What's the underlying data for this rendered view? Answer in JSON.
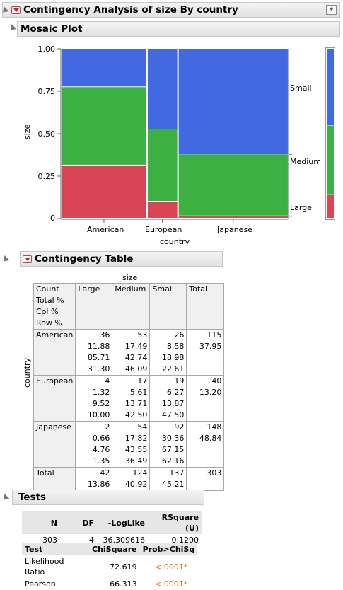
{
  "report": {
    "title": "Contingency Analysis of size By country",
    "mosaic_title": "Mosaic Plot",
    "table_title": "Contingency Table",
    "tests_title": "Tests"
  },
  "mosaic": {
    "ylabel": "size",
    "xlabel": "country",
    "yticks": [
      "1.00",
      "0.75",
      "0.50",
      "0.25",
      "0"
    ],
    "countries": [
      "American",
      "European",
      "Japanese"
    ],
    "legend": [
      "Small",
      "Medium",
      "Large"
    ],
    "colors": {
      "Small": "#4169e1",
      "Medium": "#3cb043",
      "Large": "#d94555"
    }
  },
  "chart_data": {
    "type": "mosaic",
    "x_variable": "country",
    "y_variable": "size",
    "categories": [
      "American",
      "European",
      "Japanese"
    ],
    "column_widths": [
      0.3795,
      0.132,
      0.4884
    ],
    "series": [
      {
        "name": "Large",
        "values": [
          0.313,
          0.1,
          0.0135
        ]
      },
      {
        "name": "Medium",
        "values": [
          0.4609,
          0.425,
          0.3649
        ]
      },
      {
        "name": "Small",
        "values": [
          0.2261,
          0.475,
          0.6216
        ]
      }
    ],
    "margin": [
      0.1386,
      0.4092,
      0.4521
    ],
    "ylim": [
      0,
      1
    ]
  },
  "ctable": {
    "col_var": "size",
    "row_var": "country",
    "stats_labels": [
      "Count",
      "Total %",
      "Col %",
      "Row %"
    ],
    "columns": [
      "Large",
      "Medium",
      "Small",
      "Total"
    ],
    "rows": [
      {
        "name": "American",
        "cells": [
          [
            "36",
            "11.88",
            "85.71",
            "31.30"
          ],
          [
            "53",
            "17.49",
            "42.74",
            "46.09"
          ],
          [
            "26",
            "8.58",
            "18.98",
            "22.61"
          ]
        ],
        "total": [
          "115",
          "37.95"
        ]
      },
      {
        "name": "European",
        "cells": [
          [
            "4",
            "1.32",
            "9.52",
            "10.00"
          ],
          [
            "17",
            "5.61",
            "13.71",
            "42.50"
          ],
          [
            "19",
            "6.27",
            "13.87",
            "47.50"
          ]
        ],
        "total": [
          "40",
          "13.20"
        ]
      },
      {
        "name": "Japanese",
        "cells": [
          [
            "2",
            "0.66",
            "4.76",
            "1.35"
          ],
          [
            "54",
            "17.82",
            "43.55",
            "36.49"
          ],
          [
            "92",
            "30.36",
            "67.15",
            "62.16"
          ]
        ],
        "total": [
          "148",
          "48.84"
        ]
      }
    ],
    "total_row": {
      "name": "Total",
      "cells": [
        [
          "42",
          "13.86"
        ],
        [
          "124",
          "40.92"
        ],
        [
          "137",
          "45.21"
        ]
      ],
      "grand": "303"
    }
  },
  "tests": {
    "summary_headers": [
      "N",
      "DF",
      "-LogLike",
      "RSquare (U)"
    ],
    "summary_values": [
      "303",
      "4",
      "36.309616",
      "0.1200"
    ],
    "chi_headers": [
      "Test",
      "ChiSquare",
      "Prob>ChiSq"
    ],
    "chi_rows": [
      [
        "Likelihood Ratio",
        "72.619",
        "<.0001*"
      ],
      [
        "Pearson",
        "66.313",
        "<.0001*"
      ]
    ]
  }
}
